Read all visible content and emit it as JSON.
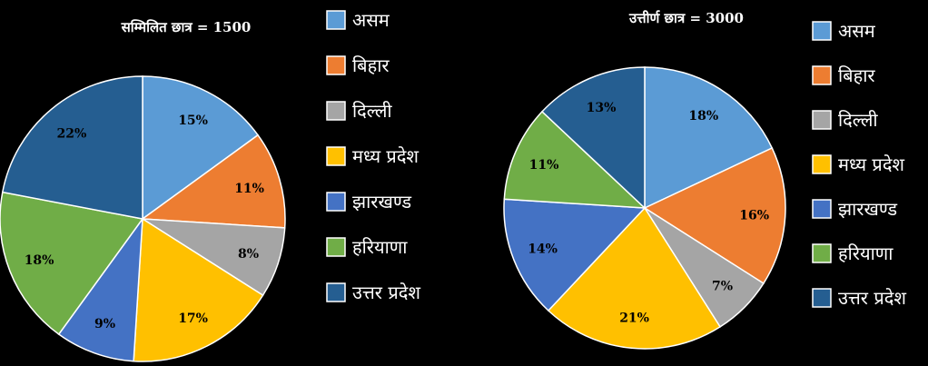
{
  "chart_data": [
    {
      "type": "pie",
      "title": "सम्मिलित छात्र = 1500",
      "categories": [
        "असम",
        "बिहार",
        "दिल्ली",
        "मध्य प्रदेश",
        "झारखण्ड",
        "हरियाणा",
        "उत्तर प्रदेश"
      ],
      "values": [
        15,
        11,
        8,
        17,
        9,
        18,
        22
      ],
      "labels": [
        "15%",
        "11%",
        "8%",
        "17%",
        "9%",
        "18%",
        "22%"
      ],
      "legend_position": "right"
    },
    {
      "type": "pie",
      "title": "उत्तीर्ण छात्र = 3000",
      "categories": [
        "असम",
        "बिहार",
        "दिल्ली",
        "मध्य प्रदेश",
        "झारखण्ड",
        "हरियाणा",
        "उत्तर प्रदेश"
      ],
      "values": [
        18,
        16,
        7,
        21,
        14,
        11,
        13
      ],
      "labels": [
        "18%",
        "16%",
        "7%",
        "21%",
        "14%",
        "11%",
        "13%"
      ],
      "legend_position": "right"
    }
  ],
  "colors": [
    "#5B9BD5",
    "#ED7D31",
    "#A5A5A5",
    "#FFC000",
    "#4472C4",
    "#70AD47",
    "#255E91"
  ]
}
